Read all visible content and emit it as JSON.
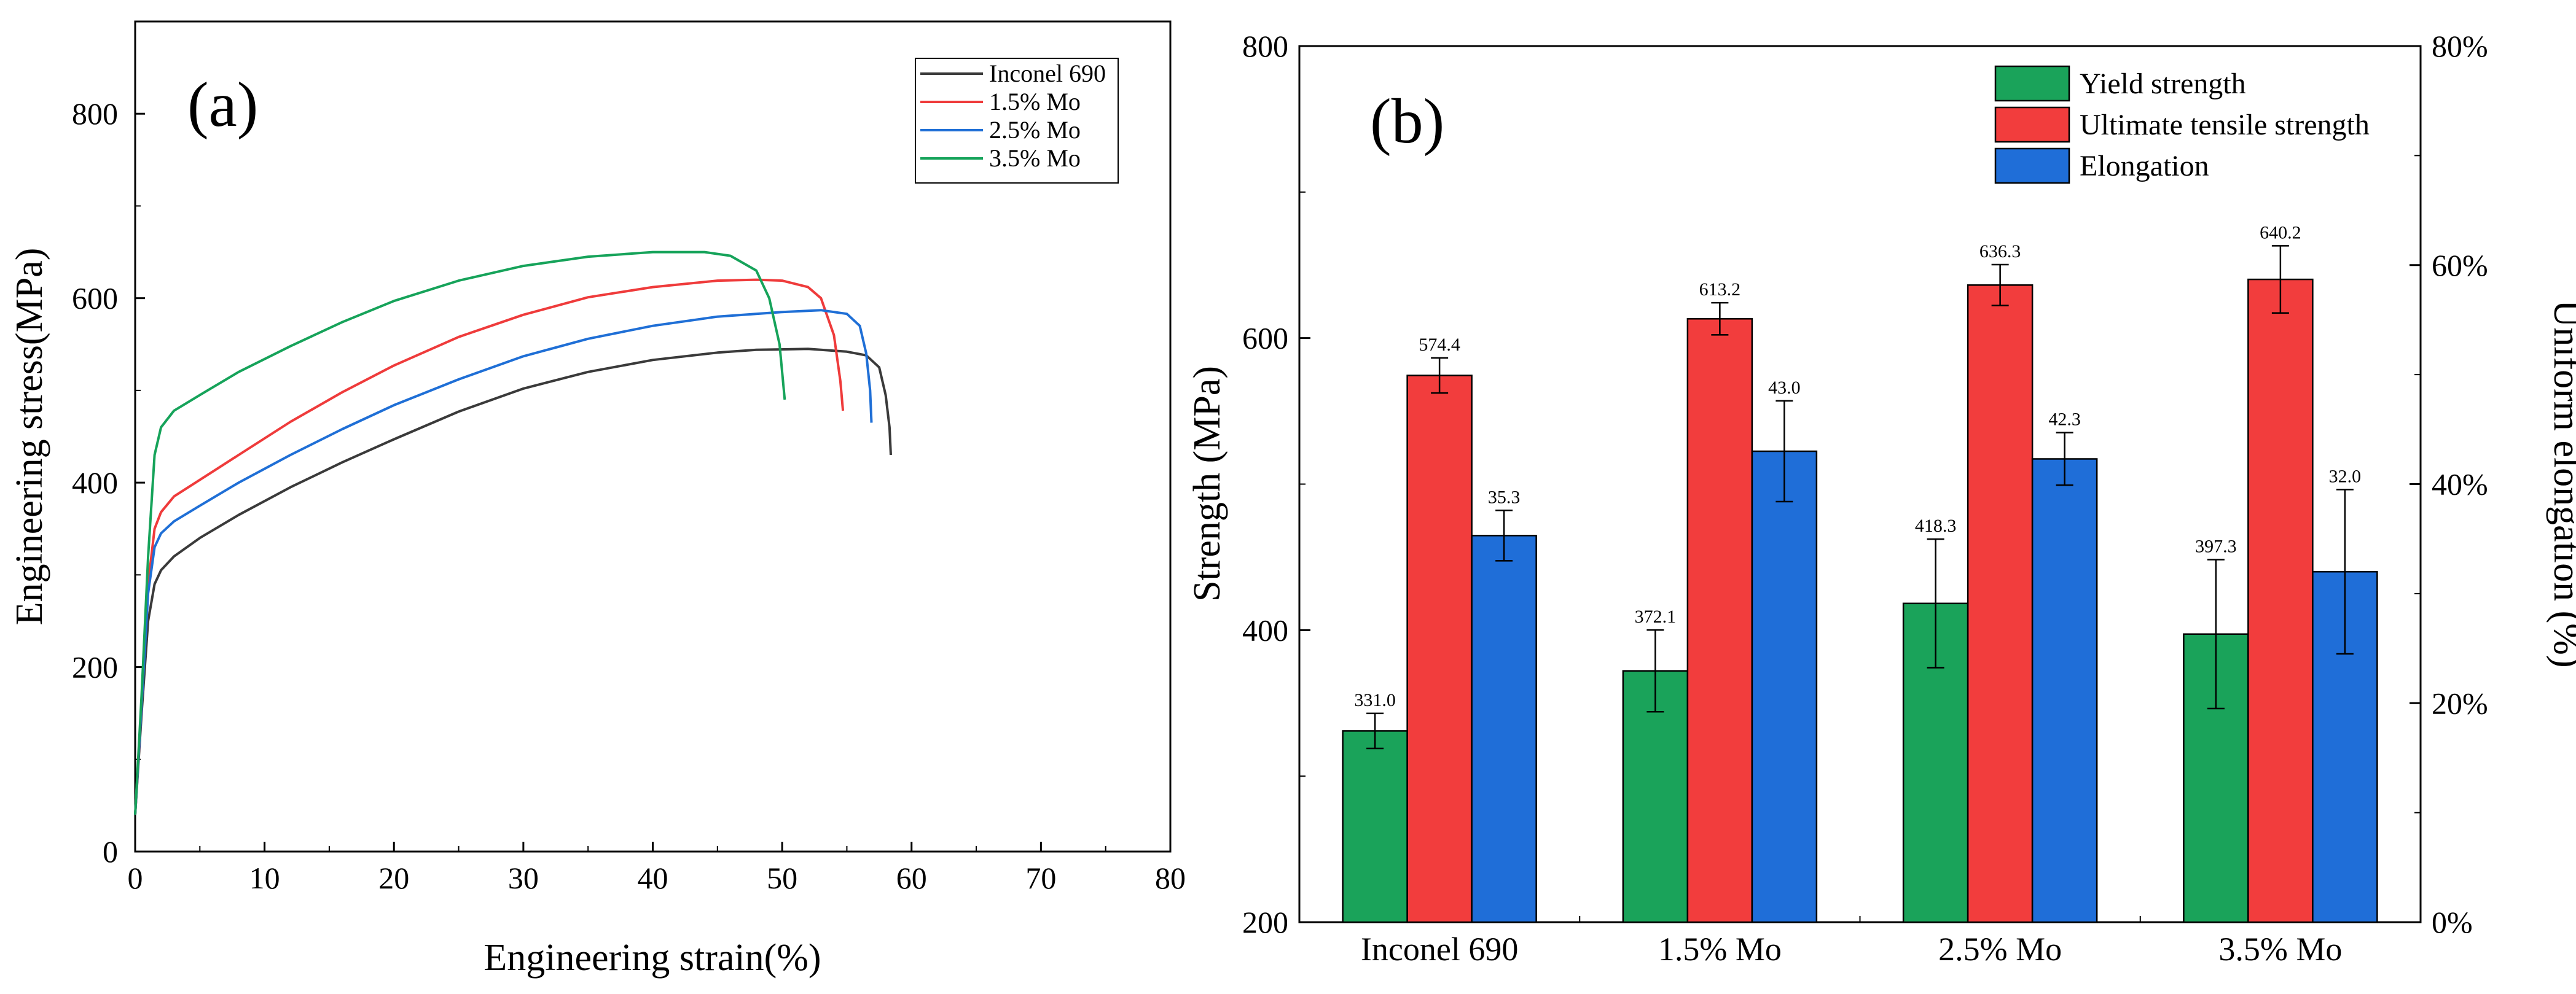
{
  "chart_data": [
    {
      "panel": "(a)",
      "type": "line",
      "xlabel": "Engineering strain(%)",
      "ylabel": "Engineering stress(MPa)",
      "xlim": [
        0,
        80
      ],
      "ylim": [
        0,
        900
      ],
      "xticks": [
        0,
        10,
        20,
        30,
        40,
        50,
        60,
        70,
        80
      ],
      "yticks": [
        0,
        200,
        400,
        600,
        800
      ],
      "legend_position": "top-right",
      "series": [
        {
          "name": "Inconel 690",
          "color": "#3a3a3a",
          "points": [
            [
              0,
              40
            ],
            [
              0.5,
              150
            ],
            [
              1,
              250
            ],
            [
              1.5,
              290
            ],
            [
              2,
              305
            ],
            [
              3,
              320
            ],
            [
              5,
              340
            ],
            [
              8,
              365
            ],
            [
              12,
              395
            ],
            [
              16,
              422
            ],
            [
              20,
              447
            ],
            [
              25,
              477
            ],
            [
              30,
              502
            ],
            [
              35,
              520
            ],
            [
              40,
              533
            ],
            [
              45,
              541
            ],
            [
              48,
              544
            ],
            [
              52,
              545
            ],
            [
              55,
              542
            ],
            [
              56.5,
              538
            ],
            [
              57.5,
              525
            ],
            [
              58,
              495
            ],
            [
              58.3,
              460
            ],
            [
              58.4,
              430
            ]
          ]
        },
        {
          "name": "1.5% Mo",
          "color": "#ef3b3b",
          "points": [
            [
              0,
              40
            ],
            [
              0.5,
              160
            ],
            [
              1,
              290
            ],
            [
              1.5,
              350
            ],
            [
              2,
              368
            ],
            [
              3,
              385
            ],
            [
              5,
              403
            ],
            [
              8,
              430
            ],
            [
              12,
              466
            ],
            [
              16,
              498
            ],
            [
              20,
              527
            ],
            [
              25,
              558
            ],
            [
              30,
              582
            ],
            [
              35,
              601
            ],
            [
              40,
              612
            ],
            [
              45,
              619
            ],
            [
              48,
              620
            ],
            [
              50,
              619
            ],
            [
              52,
              612
            ],
            [
              53,
              600
            ],
            [
              54,
              560
            ],
            [
              54.5,
              510
            ],
            [
              54.7,
              478
            ]
          ]
        },
        {
          "name": "2.5% Mo",
          "color": "#1f6fd6",
          "points": [
            [
              0,
              40
            ],
            [
              0.5,
              160
            ],
            [
              1,
              280
            ],
            [
              1.5,
              330
            ],
            [
              2,
              345
            ],
            [
              3,
              358
            ],
            [
              5,
              375
            ],
            [
              8,
              400
            ],
            [
              12,
              430
            ],
            [
              16,
              458
            ],
            [
              20,
              484
            ],
            [
              25,
              512
            ],
            [
              30,
              537
            ],
            [
              35,
              556
            ],
            [
              40,
              570
            ],
            [
              45,
              580
            ],
            [
              50,
              585
            ],
            [
              53,
              587
            ],
            [
              55,
              583
            ],
            [
              56,
              570
            ],
            [
              56.5,
              540
            ],
            [
              56.8,
              500
            ],
            [
              56.9,
              465
            ]
          ]
        },
        {
          "name": "3.5% Mo",
          "color": "#16a35a",
          "points": [
            [
              0,
              40
            ],
            [
              0.5,
              170
            ],
            [
              1,
              320
            ],
            [
              1.5,
              430
            ],
            [
              2,
              460
            ],
            [
              3,
              478
            ],
            [
              5,
              495
            ],
            [
              8,
              520
            ],
            [
              12,
              548
            ],
            [
              16,
              574
            ],
            [
              20,
              597
            ],
            [
              25,
              619
            ],
            [
              30,
              635
            ],
            [
              35,
              645
            ],
            [
              40,
              650
            ],
            [
              44,
              650
            ],
            [
              46,
              646
            ],
            [
              48,
              630
            ],
            [
              49,
              600
            ],
            [
              49.8,
              550
            ],
            [
              50.2,
              490
            ]
          ]
        }
      ]
    },
    {
      "panel": "(b)",
      "type": "bar",
      "categories": [
        "Inconel 690",
        "1.5% Mo",
        "2.5% Mo",
        "3.5% Mo"
      ],
      "ylabel": "Strength (MPa)",
      "y2label": "Uniform elongation (%)",
      "ylim": [
        200,
        800
      ],
      "yticks": [
        200,
        400,
        600,
        800
      ],
      "y2lim": [
        0,
        80
      ],
      "y2ticks": [
        0,
        20,
        40,
        60,
        80
      ],
      "y2tick_labels": [
        "0%",
        "20%",
        "40%",
        "60%",
        "80%"
      ],
      "legend_position": "top-right",
      "series": [
        {
          "name": "Yield strength",
          "color": "#1aa35a",
          "axis": "left",
          "values": [
            331.0,
            372.1,
            418.3,
            397.3
          ],
          "labels": [
            "331.0",
            "372.1",
            "418.3",
            "397.3"
          ],
          "errors": [
            12,
            28,
            44,
            51
          ]
        },
        {
          "name": "Ultimate tensile strength",
          "color": "#f23d3d",
          "axis": "left",
          "values": [
            574.4,
            613.2,
            636.3,
            640.2
          ],
          "labels": [
            "574.4",
            "613.2",
            "636.3",
            "640.2"
          ],
          "errors": [
            12,
            11,
            14,
            23
          ]
        },
        {
          "name": "Elongation",
          "color": "#1f6ed8",
          "axis": "right",
          "values": [
            35.3,
            43.0,
            42.3,
            32.0
          ],
          "labels": [
            "35.3",
            "43.0",
            "42.3",
            "32.0"
          ],
          "errors": [
            2.3,
            4.6,
            2.4,
            7.5
          ]
        }
      ]
    }
  ]
}
